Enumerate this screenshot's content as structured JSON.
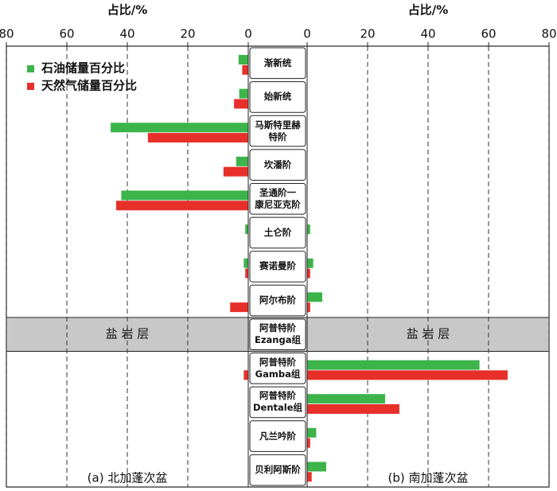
{
  "chart_data": [
    {
      "type": "hbar",
      "xlabel": "占比/%",
      "annotation": "盐 岩 层",
      "title": "(a) 北加蓬次盆",
      "xlim": [
        80,
        0
      ],
      "xticks": [
        80,
        60,
        40,
        20,
        0
      ],
      "grid": true,
      "legend": "upper left",
      "categories": [
        "渐新统",
        "始新统",
        "马斯特里赫\n特阶",
        "坎潘阶",
        "圣通阶一\n康尼亚克阶",
        "土仑阶",
        "赛诺曼阶",
        "阿尔布阶",
        "阿普特阶\nEzanga组",
        "阿普特阶\nGamba组",
        "阿普特阶\nDentale组",
        "凡兰吟阶",
        "贝利阿斯阶"
      ],
      "series": [
        {
          "name": "石油储量百分比",
          "color": "#3cb44a",
          "values": [
            3.2,
            3,
            45.5,
            4,
            42,
            1,
            1.5,
            0,
            null,
            0,
            0,
            0,
            0
          ]
        },
        {
          "name": "天然气储量百分比",
          "color": "#e8302a",
          "values": [
            2,
            4.7,
            33.2,
            8.2,
            43.7,
            0,
            1,
            6,
            null,
            1.5,
            0,
            0,
            0
          ]
        }
      ]
    },
    {
      "type": "hbar",
      "xlabel": "占比/%",
      "annotation": "盐 岩 层",
      "title": "(b) 南加蓬次盆",
      "xlim": [
        0,
        80
      ],
      "xticks": [
        0,
        20,
        40,
        60,
        80
      ],
      "grid": true,
      "series": [
        {
          "name": "石油储量百分比",
          "color": "#3cb44a",
          "values": [
            0,
            0,
            0,
            0,
            0,
            1,
            2,
            5,
            null,
            57,
            25.8,
            3,
            6.3
          ]
        },
        {
          "name": "天然气储量百分比",
          "color": "#e8302a",
          "values": [
            0,
            0,
            0,
            0,
            0,
            0,
            1,
            1,
            null,
            66.3,
            30.5,
            1,
            1.5
          ]
        }
      ]
    }
  ]
}
